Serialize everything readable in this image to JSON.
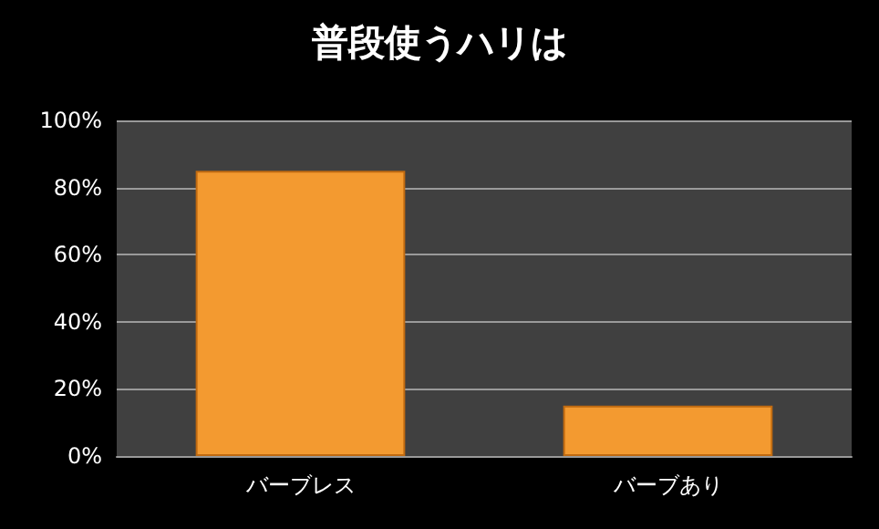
{
  "chart_data": {
    "type": "bar",
    "title": "普段使うハリは",
    "categories": [
      "バーブレス",
      "バーブあり"
    ],
    "values": [
      85,
      15
    ],
    "color": "#f39a30",
    "ylim": [
      0,
      100
    ],
    "yticks": [
      {
        "value": 0,
        "label": "0%"
      },
      {
        "value": 20,
        "label": "20%"
      },
      {
        "value": 40,
        "label": "40%"
      },
      {
        "value": 60,
        "label": "60%"
      },
      {
        "value": 80,
        "label": "80%"
      },
      {
        "value": 100,
        "label": "100%"
      }
    ],
    "grid": true
  }
}
